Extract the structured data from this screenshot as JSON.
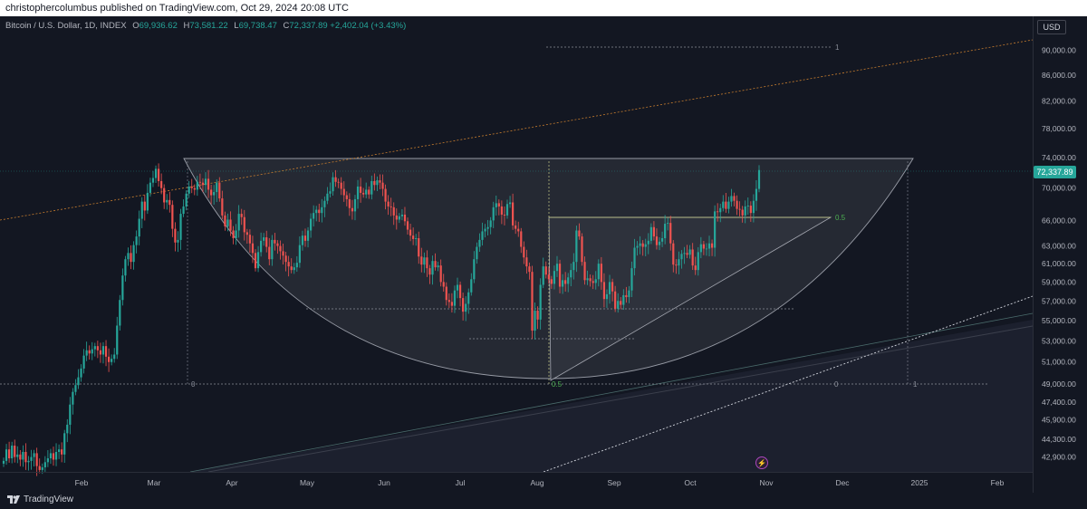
{
  "header": {
    "published": "christophercolumbus published on TradingView.com, Oct 29, 2024 20:08 UTC"
  },
  "legend": {
    "symbol": "Bitcoin / U.S. Dollar, 1D, INDEX",
    "open_label": "O",
    "open": "69,936.62",
    "high_label": "H",
    "high": "73,581.22",
    "low_label": "L",
    "low": "69,738.47",
    "close_label": "C",
    "close": "72,337.89",
    "change": "+2,402.04 (+3.43%)"
  },
  "price_axis": {
    "currency": "USD",
    "last_price": "72,337.89"
  },
  "footer": {
    "brand": "TradingView"
  },
  "colors": {
    "background": "#131722",
    "up": "#26a69a",
    "down": "#ef5350",
    "fib_label": "#4caf50",
    "trend_orange": "#ff9800"
  },
  "icons": [
    "tradingview-logo-icon",
    "idea-icon"
  ],
  "chart_data": {
    "type": "candlestick",
    "title": "Bitcoin / U.S. Dollar, 1D, INDEX",
    "x_ticks": [
      "Feb",
      "Mar",
      "Apr",
      "May",
      "Jun",
      "Jul",
      "Aug",
      "Sep",
      "Oct",
      "Nov",
      "Dec",
      "2025",
      "Feb"
    ],
    "y_ticks": [
      "90,000.00",
      "86,000.00",
      "82,000.00",
      "78,000.00",
      "74,000.00",
      "70,000.00",
      "66,000.00",
      "63,000.00",
      "61,000.00",
      "59,000.00",
      "57,000.00",
      "55,000.00",
      "53,000.00",
      "51,000.00",
      "49,000.00",
      "47,400.00",
      "45,900.00",
      "44,300.00",
      "42,900.00"
    ],
    "y_tick_values": [
      90000,
      86000,
      82000,
      78000,
      74000,
      70000,
      66000,
      63000,
      61000,
      59000,
      57000,
      55000,
      53000,
      51000,
      49000,
      47400,
      45900,
      44300,
      42900
    ],
    "y_scale": "log",
    "ylim": [
      41800,
      96000
    ],
    "series": [
      {
        "name": "BTCUSD",
        "closes": [
          42600,
          43500,
          42800,
          43800,
          42900,
          43100,
          42700,
          43300,
          42500,
          42600,
          42900,
          43200,
          42200,
          41900,
          42100,
          42500,
          42800,
          43200,
          42700,
          43300,
          43500,
          43100,
          44800,
          45500,
          47200,
          48300,
          48900,
          49600,
          50400,
          51600,
          52100,
          51800,
          52200,
          52500,
          52100,
          51700,
          52500,
          51500,
          51000,
          51300,
          51700,
          54500,
          57100,
          59700,
          61500,
          62200,
          61200,
          63100,
          64100,
          66200,
          68300,
          67200,
          69400,
          70700,
          71300,
          72500,
          70900,
          70000,
          68200,
          68500,
          67900,
          65000,
          63400,
          63700,
          66800,
          67700,
          69300,
          70200,
          70000,
          69800,
          70800,
          70700,
          70400,
          71200,
          69800,
          69100,
          69500,
          70700,
          68700,
          66600,
          65300,
          66100,
          64800,
          63900,
          64800,
          66800,
          66400,
          64600,
          64300,
          63300,
          62200,
          60500,
          62300,
          63600,
          64000,
          62900,
          61500,
          63700,
          63300,
          63000,
          62400,
          61900,
          61200,
          60700,
          60300,
          60600,
          61100,
          63100,
          64200,
          63600,
          64800,
          66200,
          66900,
          67300,
          66900,
          67600,
          68400,
          69300,
          69600,
          71400,
          70800,
          70700,
          69900,
          69100,
          68600,
          67500,
          67100,
          68600,
          70200,
          69400,
          69200,
          69800,
          69200,
          70900,
          70400,
          71000,
          70700,
          69900,
          68300,
          67700,
          67600,
          66600,
          66100,
          66500,
          66700,
          65900,
          64900,
          64200,
          63800,
          63900,
          61800,
          60900,
          61700,
          60500,
          59800,
          61300,
          60600,
          60800,
          59000,
          58500,
          57100,
          56900,
          56500,
          58100,
          58700,
          57300,
          55900,
          56700,
          57900,
          59300,
          61500,
          62900,
          63700,
          64700,
          65000,
          65200,
          66000,
          67600,
          68100,
          67700,
          66700,
          66600,
          68000,
          68200,
          65400,
          65000,
          64700,
          62900,
          61700,
          60700,
          60100,
          54000,
          56000,
          55100,
          58700,
          60700,
          59800,
          59300,
          58800,
          60200,
          61000,
          58500,
          59200,
          58800,
          59500,
          60300,
          61200,
          64800,
          64100,
          61200,
          59200,
          59400,
          59100,
          58900,
          59300,
          61000,
          59000,
          57200,
          57700,
          59000,
          58000,
          56200,
          57000,
          56600,
          57600,
          57400,
          58100,
          60500,
          62800,
          63000,
          63300,
          62900,
          63200,
          63600,
          65200,
          64100,
          63100,
          63500,
          63900,
          65600,
          65700,
          63300,
          60900,
          60800,
          61500,
          62100,
          62200,
          62000,
          62600,
          60800,
          60300,
          62300,
          63200,
          62700,
          62700,
          63300,
          62800,
          67100,
          67000,
          67500,
          68300,
          67400,
          68300,
          69000,
          68400,
          67400,
          67300,
          66600,
          67700,
          67800,
          66900,
          68400,
          69900,
          72337.89
        ]
      }
    ],
    "annotations": [
      "0",
      "0.5",
      "0.5",
      "0",
      "1",
      "1"
    ]
  }
}
